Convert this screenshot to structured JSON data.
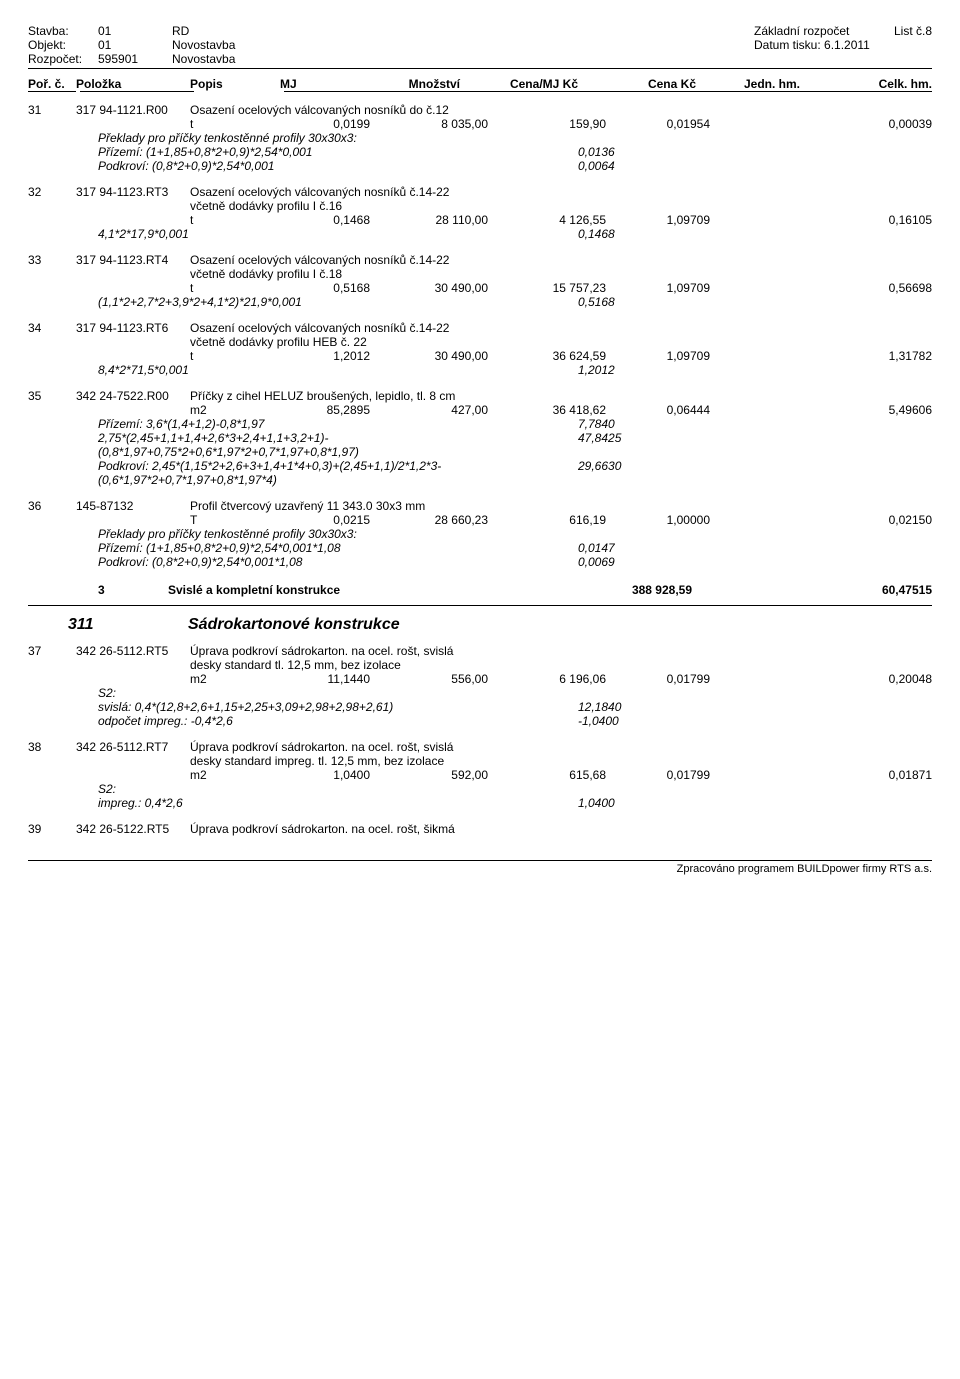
{
  "header": {
    "labels": {
      "stavba": "Stavba:",
      "objekt": "Objekt:",
      "rozpocet": "Rozpočet:"
    },
    "values": {
      "stavba_code": "01",
      "stavba_name": "RD",
      "objekt_code": "01",
      "objekt_name": "Novostavba",
      "rozpocet_code": "595901",
      "rozpocet_name": "Novostavba"
    },
    "right": {
      "zakladni": "Základní rozpočet",
      "list": "List č.8",
      "datum_lbl": "Datum tisku:",
      "datum": "6.1.2011"
    }
  },
  "cols": {
    "c1": "Poř. č.",
    "c2": "Položka",
    "c3": "Popis",
    "c4": "MJ",
    "c5": "Množství",
    "c6": "Cena/MJ Kč",
    "c7": "Cena Kč",
    "c8": "Jedn. hm.",
    "c9": "Celk. hm."
  },
  "items": [
    {
      "idx": "31",
      "code": "317 94-1121.R00",
      "desc": "Osazení ocelových válcovaných nosníků do č.12",
      "unit": {
        "mj": "t",
        "qty": "0,0199",
        "price": "8 035,00",
        "cost": "159,90",
        "jhm": "0,01954",
        "chm": "0,00039"
      },
      "calcs": [
        {
          "note": "Překlady pro příčky tenkostěnné profily 30x30x3:",
          "val": ""
        },
        {
          "note": "Přízemí: (1+1,85+0,8*2+0,9)*2,54*0,001",
          "val": "0,0136"
        },
        {
          "note": "Podkroví: (0,8*2+0,9)*2,54*0,001",
          "val": "0,0064"
        }
      ]
    },
    {
      "idx": "32",
      "code": "317 94-1123.RT3",
      "desc": "Osazení ocelových válcovaných nosníků č.14-22",
      "sub": "včetně dodávky profilu I č.16",
      "unit": {
        "mj": "t",
        "qty": "0,1468",
        "price": "28 110,00",
        "cost": "4 126,55",
        "jhm": "1,09709",
        "chm": "0,16105"
      },
      "calcs": [
        {
          "note": "4,1*2*17,9*0,001",
          "val": "0,1468"
        }
      ]
    },
    {
      "idx": "33",
      "code": "317 94-1123.RT4",
      "desc": "Osazení ocelových válcovaných nosníků č.14-22",
      "sub": "včetně dodávky profilu I č.18",
      "unit": {
        "mj": "t",
        "qty": "0,5168",
        "price": "30 490,00",
        "cost": "15 757,23",
        "jhm": "1,09709",
        "chm": "0,56698"
      },
      "calcs": [
        {
          "note": "(1,1*2+2,7*2+3,9*2+4,1*2)*21,9*0,001",
          "val": "0,5168"
        }
      ]
    },
    {
      "idx": "34",
      "code": "317 94-1123.RT6",
      "desc": "Osazení ocelových válcovaných nosníků č.14-22",
      "sub": "včetně dodávky profilu HEB č. 22",
      "unit": {
        "mj": "t",
        "qty": "1,2012",
        "price": "30 490,00",
        "cost": "36 624,59",
        "jhm": "1,09709",
        "chm": "1,31782"
      },
      "calcs": [
        {
          "note": "8,4*2*71,5*0,001",
          "val": "1,2012"
        }
      ]
    },
    {
      "idx": "35",
      "code": "342 24-7522.R00",
      "desc": "Příčky z cihel HELUZ broušených, lepidlo, tl. 8 cm",
      "unit": {
        "mj": "m2",
        "qty": "85,2895",
        "price": "427,00",
        "cost": "36 418,62",
        "jhm": "0,06444",
        "chm": "5,49606"
      },
      "calcs": [
        {
          "note": "Přízemí: 3,6*(1,4+1,2)-0,8*1,97",
          "val": "7,7840"
        },
        {
          "note": "2,75*(2,45+1,1+1,4+2,6*3+2,4+1,1+3,2+1)-",
          "val": "47,8425"
        },
        {
          "note": "(0,8*1,97+0,75*2+0,6*1,97*2+0,7*1,97+0,8*1,97)",
          "val": ""
        },
        {
          "note": "Podkroví: 2,45*(1,15*2+2,6+3+1,4+1*4+0,3)+(2,45+1,1)/2*1,2*3-",
          "val": "29,6630"
        },
        {
          "note": "(0,6*1,97*2+0,7*1,97+0,8*1,97*4)",
          "val": ""
        }
      ]
    },
    {
      "idx": "36",
      "code": "145-87132",
      "desc": "Profil čtvercový uzavřený 11 343.0 30x3 mm",
      "unit": {
        "mj": "T",
        "qty": "0,0215",
        "price": "28 660,23",
        "cost": "616,19",
        "jhm": "1,00000",
        "chm": "0,02150"
      },
      "calcs": [
        {
          "note": "Překlady pro příčky tenkostěnné profily 30x30x3:",
          "val": ""
        },
        {
          "note": "Přízemí: (1+1,85+0,8*2+0,9)*2,54*0,001*1,08",
          "val": "0,0147"
        },
        {
          "note": "Podkroví: (0,8*2+0,9)*2,54*0,001*1,08",
          "val": "0,0069"
        }
      ]
    }
  ],
  "section3": {
    "idx": "3",
    "title": "Svislé a kompletní konstrukce",
    "sum": "388 928,59",
    "hm": "60,47515"
  },
  "section311": {
    "code": "311",
    "title": "Sádrokartonové konstrukce"
  },
  "items2": [
    {
      "idx": "37",
      "code": "342 26-5112.RT5",
      "desc": "Úprava podkroví sádrokarton. na ocel. rošt, svislá",
      "sub": "desky standard tl. 12,5 mm, bez izolace",
      "unit": {
        "mj": "m2",
        "qty": "11,1440",
        "price": "556,00",
        "cost": "6 196,06",
        "jhm": "0,01799",
        "chm": "0,20048"
      },
      "calcs": [
        {
          "note": "S2:",
          "val": ""
        },
        {
          "note": "svislá: 0,4*(12,8+2,6+1,15+2,25+3,09+2,98+2,98+2,61)",
          "val": "12,1840"
        },
        {
          "note": "odpočet impreg.: -0,4*2,6",
          "val": "-1,0400"
        }
      ]
    },
    {
      "idx": "38",
      "code": "342 26-5112.RT7",
      "desc": "Úprava podkroví sádrokarton. na ocel. rošt, svislá",
      "sub": "desky standard impreg. tl. 12,5 mm, bez izolace",
      "unit": {
        "mj": "m2",
        "qty": "1,0400",
        "price": "592,00",
        "cost": "615,68",
        "jhm": "0,01799",
        "chm": "0,01871"
      },
      "calcs": [
        {
          "note": "S2:",
          "val": ""
        },
        {
          "note": "impreg.: 0,4*2,6",
          "val": "1,0400"
        }
      ]
    },
    {
      "idx": "39",
      "code": "342 26-5122.RT5",
      "desc": "Úprava podkroví sádrokarton. na ocel. rošt, šikmá"
    }
  ],
  "footer": "Zpracováno programem BUILDpower firmy RTS a.s."
}
